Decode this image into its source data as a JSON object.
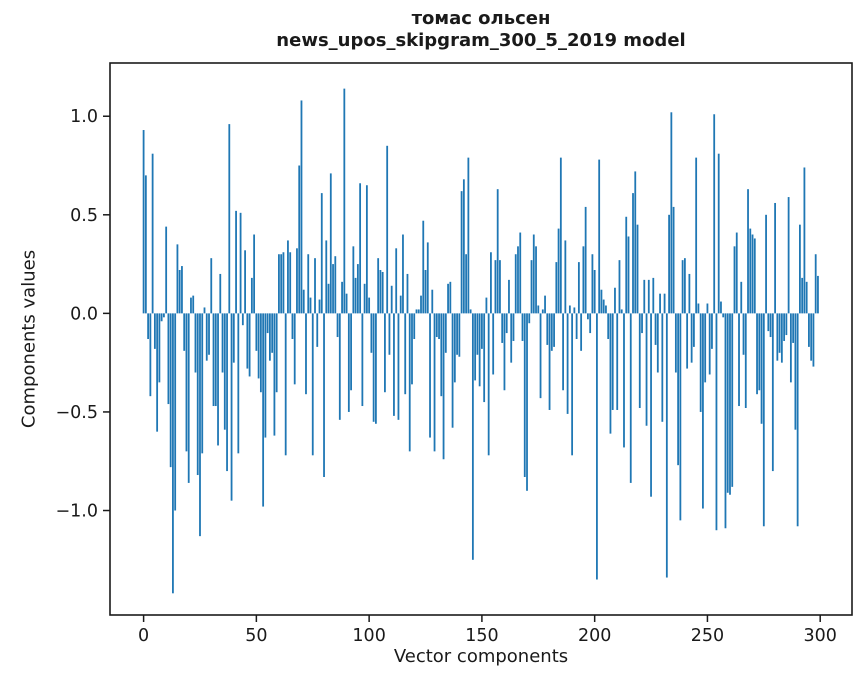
{
  "figure": {
    "background": "#ffffff"
  },
  "chart_data": {
    "type": "bar",
    "title": "томас ольсен",
    "subtitle": "news_upos_skipgram_300_5_2019 model",
    "xlabel": "Vector components",
    "ylabel": "Components values",
    "bar_color": "#1f77b4",
    "axis_color": "#1a1a1a",
    "grid": false,
    "legend_position": "none",
    "n_points": 300,
    "x_start": 0,
    "x_ticks": [
      0,
      50,
      100,
      150,
      200,
      250,
      300
    ],
    "x_tick_labels": [
      "0",
      "50",
      "100",
      "150",
      "200",
      "250",
      "300"
    ],
    "y_ticks": [
      1.0,
      0.5,
      0.0,
      -0.5,
      -1.0
    ],
    "y_tick_labels": [
      "1.0",
      "0.5",
      "0.0",
      "−0.5",
      "−1.0"
    ],
    "xlim": [
      -14.9,
      314.1
    ],
    "ylim": [
      -1.53,
      1.27
    ],
    "values": [
      0.93,
      0.7,
      -0.13,
      -0.42,
      0.81,
      -0.18,
      -0.6,
      -0.35,
      -0.04,
      -0.02,
      0.44,
      -0.46,
      -0.78,
      -1.42,
      -1.0,
      0.35,
      0.22,
      0.24,
      -0.19,
      -0.7,
      -0.86,
      0.08,
      0.09,
      -0.3,
      -0.82,
      -1.13,
      -0.71,
      0.03,
      -0.24,
      -0.21,
      0.28,
      -0.47,
      -0.47,
      -0.67,
      0.2,
      -0.3,
      -0.59,
      -0.8,
      0.96,
      -0.95,
      -0.25,
      0.52,
      -0.71,
      0.51,
      -0.06,
      0.32,
      -0.28,
      -0.32,
      0.18,
      0.4,
      -0.19,
      -0.33,
      -0.4,
      -0.98,
      -0.63,
      -0.1,
      -0.24,
      -0.2,
      -0.62,
      -0.4,
      0.3,
      0.3,
      0.31,
      -0.72,
      0.37,
      0.31,
      -0.13,
      -0.36,
      0.33,
      0.75,
      1.08,
      0.12,
      -0.41,
      0.3,
      0.08,
      -0.72,
      0.28,
      -0.17,
      0.07,
      0.61,
      -0.83,
      0.37,
      0.15,
      0.71,
      0.25,
      0.29,
      -0.12,
      -0.54,
      0.16,
      1.14,
      0.1,
      -0.5,
      -0.39,
      0.34,
      0.18,
      0.25,
      0.66,
      -0.47,
      0.15,
      0.65,
      0.08,
      -0.2,
      -0.55,
      -0.56,
      0.28,
      0.22,
      0.21,
      -0.4,
      0.85,
      -0.21,
      0.14,
      -0.52,
      0.33,
      -0.54,
      0.09,
      0.4,
      -0.41,
      0.2,
      -0.7,
      -0.36,
      -0.13,
      0.02,
      0.02,
      0.09,
      0.47,
      0.22,
      0.36,
      -0.63,
      0.12,
      -0.7,
      -0.12,
      -0.13,
      -0.42,
      -0.74,
      -0.2,
      0.15,
      0.16,
      -0.58,
      -0.35,
      -0.21,
      -0.22,
      0.62,
      0.68,
      0.3,
      0.79,
      0.02,
      -1.25,
      -0.34,
      -0.21,
      -0.37,
      -0.18,
      -0.45,
      0.08,
      -0.72,
      0.31,
      -0.31,
      0.27,
      0.63,
      0.27,
      -0.15,
      -0.39,
      -0.1,
      0.17,
      -0.25,
      -0.14,
      0.3,
      0.34,
      0.41,
      -0.14,
      -0.83,
      -0.9,
      -0.05,
      0.27,
      0.4,
      0.34,
      0.04,
      -0.43,
      0.02,
      0.09,
      -0.16,
      -0.49,
      -0.19,
      -0.17,
      0.26,
      0.43,
      0.79,
      -0.39,
      0.37,
      -0.51,
      0.04,
      -0.72,
      0.03,
      -0.13,
      0.26,
      -0.19,
      0.34,
      0.54,
      -0.03,
      -0.1,
      0.3,
      0.22,
      -1.35,
      0.78,
      0.12,
      0.07,
      0.04,
      -0.13,
      -0.61,
      -0.49,
      0.13,
      -0.49,
      0.27,
      0.02,
      -0.68,
      0.49,
      0.39,
      -0.86,
      0.61,
      0.72,
      0.45,
      -0.48,
      -0.1,
      0.17,
      -0.57,
      0.17,
      -0.93,
      0.18,
      -0.16,
      -0.3,
      0.1,
      -0.55,
      0.1,
      -1.34,
      0.5,
      1.02,
      0.54,
      -0.3,
      -0.77,
      -1.05,
      0.27,
      0.28,
      -0.28,
      0.2,
      -0.25,
      -0.17,
      0.79,
      0.05,
      -0.5,
      -0.99,
      -0.35,
      0.05,
      -0.31,
      -0.18,
      1.01,
      -1.1,
      0.81,
      0.06,
      -0.02,
      -1.09,
      -0.91,
      -0.92,
      -0.88,
      0.34,
      0.41,
      -0.47,
      0.16,
      -0.21,
      -0.48,
      0.63,
      0.43,
      0.4,
      0.38,
      -0.41,
      -0.39,
      -0.56,
      -1.08,
      0.5,
      -0.09,
      -0.12,
      -0.8,
      0.56,
      -0.24,
      -0.2,
      -0.25,
      -0.14,
      -0.11,
      0.59,
      -0.35,
      -0.15,
      -0.59,
      -1.08,
      0.45,
      0.18,
      0.74,
      0.16,
      -0.17,
      -0.24,
      -0.27,
      0.3,
      0.19
    ]
  }
}
